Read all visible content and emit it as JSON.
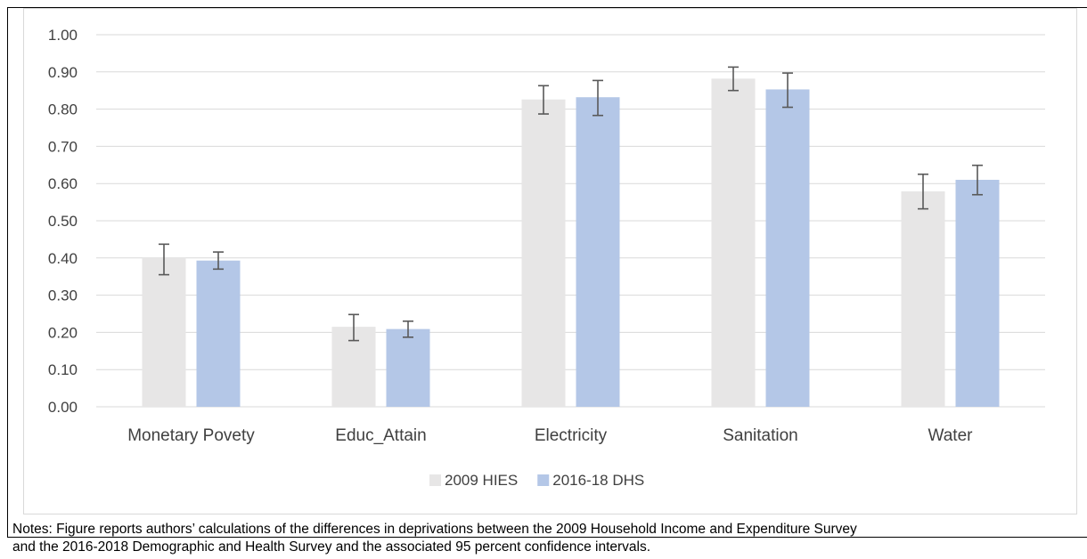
{
  "chart_data": {
    "type": "bar",
    "categories": [
      "Monetary Povety",
      "Educ_Attain",
      "Electricity",
      "Sanitation",
      "Water"
    ],
    "series": [
      {
        "name": "2009 HIES",
        "color": "#e7e6e6",
        "values": [
          0.4,
          0.215,
          0.826,
          0.882,
          0.579
        ],
        "ci_low": [
          0.355,
          0.178,
          0.787,
          0.85,
          0.532
        ],
        "ci_high": [
          0.437,
          0.248,
          0.863,
          0.913,
          0.625
        ]
      },
      {
        "name": "2016-18 DHS",
        "color": "#b4c7e7",
        "values": [
          0.393,
          0.209,
          0.832,
          0.853,
          0.61
        ],
        "ci_low": [
          0.37,
          0.187,
          0.783,
          0.805,
          0.57
        ],
        "ci_high": [
          0.416,
          0.23,
          0.877,
          0.897,
          0.649
        ]
      }
    ],
    "yticks": [
      "0.00",
      "0.10",
      "0.20",
      "0.30",
      "0.40",
      "0.50",
      "0.60",
      "0.70",
      "0.80",
      "0.90",
      "1.00"
    ],
    "ylim": [
      0,
      1
    ],
    "grid": true,
    "legend_position": "bottom",
    "gridline_color": "#d9d9d9",
    "errorbar_color": "#595959"
  },
  "notes": {
    "line1": "Notes:  Figure reports authors’ calculations of the differences in deprivations between the 2009 Household Income and Expenditure Survey",
    "line2": "and the 2016-2018 Demographic and Health Survey and the associated 95 percent confidence intervals."
  }
}
